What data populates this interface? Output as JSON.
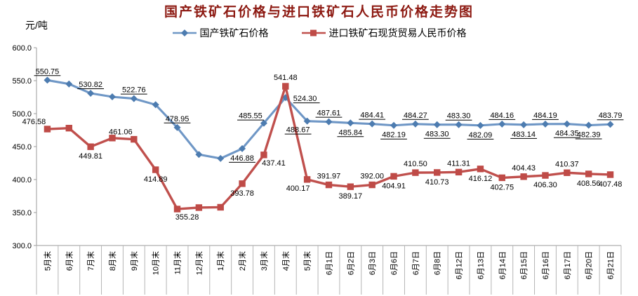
{
  "title": "国产铁矿石价格与进口铁矿石人民币价格走势图",
  "y_axis_unit": "元/吨",
  "colors": {
    "title": "#8d1a12",
    "domestic_line": "#6f97c6",
    "domestic_marker": "#4d7cb0",
    "imported_line": "#c0504d",
    "imported_marker": "#bf4b47",
    "axis": "#9b9b9b",
    "separator": "#b5b5b5",
    "label_text": "#000000"
  },
  "chart_data": {
    "type": "line",
    "title": "国产铁矿石价格与进口铁矿石人民币价格走势图",
    "ylabel": "元/吨",
    "ylim": [
      300,
      600
    ],
    "y_ticks": [
      "600.0",
      "550.0",
      "500.0",
      "450.0",
      "400.0",
      "350.0",
      "300.0"
    ],
    "grid": false,
    "legend_position": "top",
    "categories": [
      "5月末",
      "6月末",
      "7月末",
      "8月末",
      "9月末",
      "10月末",
      "11月末",
      "12月末",
      "1月末",
      "2月末",
      "3月末",
      "4月末",
      "5月末",
      "6月1日",
      "6月2日",
      "6月3日",
      "6月6日",
      "6月7日",
      "6月8日",
      "6月12日",
      "6月13日",
      "6月14日",
      "6月15日",
      "6月16日",
      "6月17日",
      "6月20日",
      "6月21日"
    ],
    "series": [
      {
        "name": "国产铁矿石价格",
        "marker": "diamond",
        "labels_underlined": true,
        "values": [
          550.75,
          545.0,
          530.82,
          525.5,
          522.76,
          513.5,
          478.95,
          438.0,
          432.0,
          446.88,
          485.55,
          524.3,
          488.67,
          487.61,
          485.84,
          484.41,
          482.19,
          484.27,
          483.3,
          483.3,
          482.09,
          484.16,
          483.14,
          484.19,
          484.35,
          482.39,
          483.79
        ],
        "labels": [
          "550.75",
          null,
          "530.82",
          null,
          "522.76",
          null,
          "478.95",
          null,
          null,
          "446.88",
          "485.55",
          "524.30",
          "488.67",
          "487.61",
          "485.84",
          "484.41",
          "482.19",
          "484.27",
          "483.30",
          "483.30",
          "482.09",
          "484.16",
          "483.14",
          "484.19",
          "484.35",
          "482.39",
          "483.79"
        ],
        "label_pos": [
          "a",
          null,
          "a",
          null,
          "a",
          null,
          "a",
          null,
          null,
          "b",
          "al",
          "r",
          "bl",
          "a",
          "b",
          "a",
          "b",
          "a",
          "b",
          "a",
          "b",
          "a",
          "b",
          "a",
          "b",
          "b",
          "a"
        ]
      },
      {
        "name": "进口铁矿石现货贸易人民币价格",
        "marker": "square",
        "labels_underlined": false,
        "values": [
          476.58,
          478.0,
          449.81,
          463.0,
          461.06,
          414.89,
          355.28,
          357.5,
          358.0,
          393.78,
          437.41,
          541.48,
          400.17,
          391.97,
          389.17,
          392.0,
          404.91,
          410.5,
          410.73,
          411.31,
          416.12,
          402.75,
          404.43,
          406.3,
          410.37,
          408.56,
          407.48
        ],
        "labels": [
          "476.58",
          null,
          "449.81",
          null,
          "461.06",
          "414.89",
          "355.28",
          null,
          null,
          "393.78",
          "437.41",
          "541.48",
          "400.17",
          "391.97",
          "389.17",
          "392.00",
          "404.91",
          "410.50",
          "410.73",
          "411.31",
          "416.12",
          "402.75",
          "404.43",
          "406.30",
          "410.37",
          "408.56",
          "407.48"
        ],
        "label_pos": [
          "al",
          null,
          "b",
          null,
          "al",
          "b",
          "br",
          null,
          null,
          "b",
          "br",
          "a",
          "bl",
          "a",
          "b",
          "a",
          "b",
          "a",
          "b",
          "a",
          "b",
          "b",
          "a",
          "b",
          "a",
          "b",
          "b"
        ]
      }
    ]
  }
}
